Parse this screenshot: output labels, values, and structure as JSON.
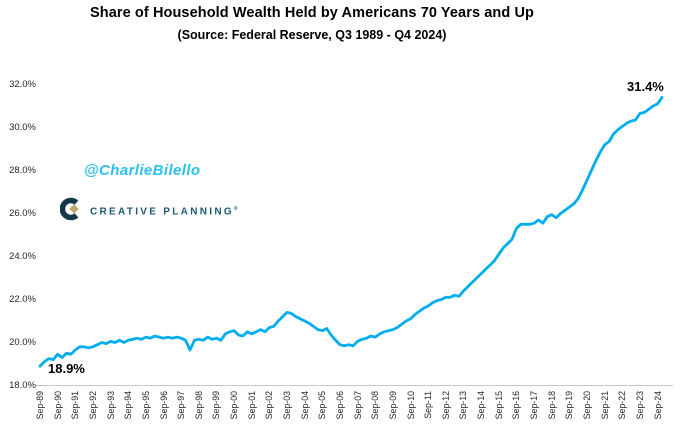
{
  "title": "Share of Household Wealth Held by Americans 70 Years and Up",
  "subtitle": "(Source: Federal Reserve, Q3 1989 - Q4 2024)",
  "watermark": "@CharlieBilello",
  "logo": {
    "text": "CREATIVE PLANNING",
    "mark": "®",
    "navy": "#14384a",
    "teal": "#1c5a72",
    "gold": "#c4a46e"
  },
  "chart_data": {
    "type": "line",
    "series_name": "Share of household wealth held by Americans 70 years and up",
    "title": "Share of Household Wealth Held by Americans 70 Years and Up",
    "subtitle": "(Source: Federal Reserve, Q3 1989 - Q4 2024)",
    "x_start": "1989-Q3",
    "x_end": "2024-Q4",
    "x_labels": [
      "Sep-89",
      "Sep-90",
      "Sep-91",
      "Sep-92",
      "Sep-93",
      "Sep-94",
      "Sep-95",
      "Sep-96",
      "Sep-97",
      "Sep-98",
      "Sep-99",
      "Sep-00",
      "Sep-01",
      "Sep-02",
      "Sep-03",
      "Sep-04",
      "Sep-05",
      "Sep-06",
      "Sep-07",
      "Sep-08",
      "Sep-09",
      "Sep-10",
      "Sep-11",
      "Sep-12",
      "Sep-13",
      "Sep-14",
      "Sep-15",
      "Sep-16",
      "Sep-17",
      "Sep-18",
      "Sep-19",
      "Sep-20",
      "Sep-21",
      "Sep-22",
      "Sep-23",
      "Sep-24"
    ],
    "values": [
      18.9,
      19.1,
      19.25,
      19.2,
      19.45,
      19.3,
      19.5,
      19.45,
      19.65,
      19.8,
      19.8,
      19.75,
      19.8,
      19.9,
      20.0,
      19.95,
      20.05,
      20.0,
      20.1,
      20.0,
      20.1,
      20.15,
      20.2,
      20.15,
      20.25,
      20.2,
      20.3,
      20.25,
      20.2,
      20.25,
      20.2,
      20.25,
      20.2,
      20.1,
      19.65,
      20.1,
      20.15,
      20.1,
      20.25,
      20.15,
      20.2,
      20.1,
      20.4,
      20.5,
      20.55,
      20.35,
      20.3,
      20.5,
      20.4,
      20.5,
      20.6,
      20.5,
      20.7,
      20.75,
      21.0,
      21.2,
      21.4,
      21.35,
      21.2,
      21.1,
      21.0,
      20.9,
      20.75,
      20.6,
      20.55,
      20.65,
      20.35,
      20.1,
      19.9,
      19.85,
      19.9,
      19.85,
      20.05,
      20.15,
      20.2,
      20.3,
      20.25,
      20.4,
      20.5,
      20.55,
      20.6,
      20.7,
      20.85,
      21.0,
      21.1,
      21.3,
      21.45,
      21.6,
      21.7,
      21.85,
      21.95,
      22.0,
      22.1,
      22.1,
      22.2,
      22.15,
      22.4,
      22.6,
      22.8,
      23.0,
      23.2,
      23.4,
      23.6,
      23.8,
      24.1,
      24.4,
      24.6,
      24.8,
      25.3,
      25.5,
      25.5,
      25.5,
      25.55,
      25.7,
      25.55,
      25.85,
      25.95,
      25.8,
      26.0,
      26.15,
      26.3,
      26.45,
      26.7,
      27.1,
      27.55,
      28.0,
      28.45,
      28.85,
      29.2,
      29.35,
      29.7,
      29.9,
      30.05,
      30.2,
      30.3,
      30.35,
      30.65,
      30.7,
      30.85,
      31.0,
      31.1,
      31.4
    ],
    "y_ticks": [
      "18.0%",
      "20.0%",
      "22.0%",
      "24.0%",
      "26.0%",
      "28.0%",
      "30.0%",
      "32.0%"
    ],
    "y_tick_values": [
      18,
      20,
      22,
      24,
      26,
      28,
      30,
      32
    ],
    "ylim": [
      18,
      32
    ],
    "start_label": "18.9%",
    "end_label": "31.4%",
    "line_color": "#00aeef",
    "axis_color": "#c8c8c8",
    "grid": false,
    "legend": "none"
  }
}
